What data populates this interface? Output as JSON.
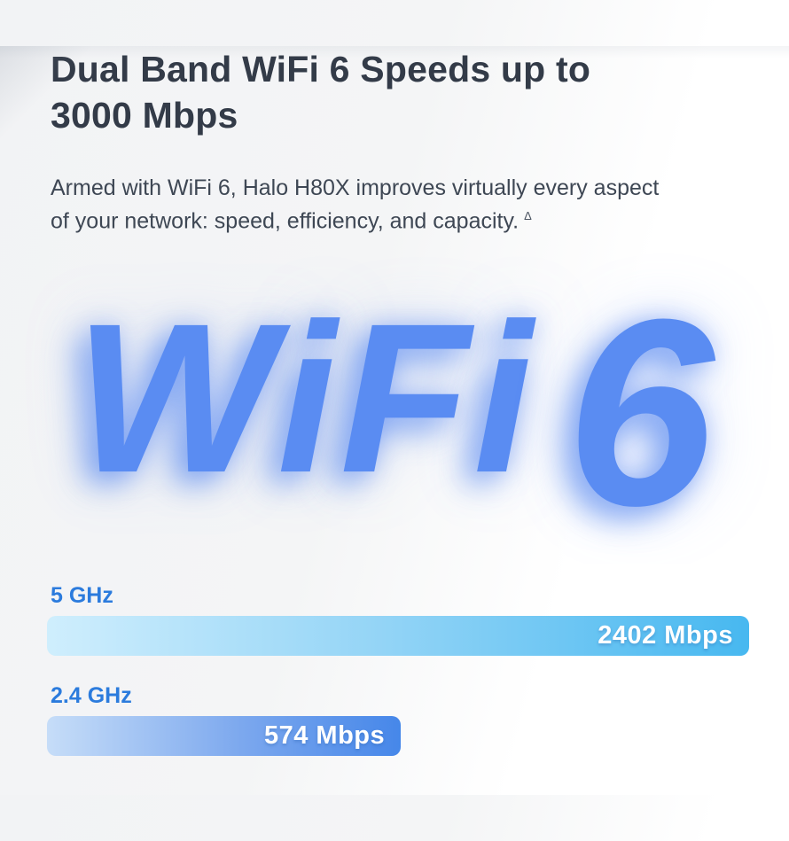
{
  "header": {
    "title_line1": "Dual Band WiFi 6 Speeds up to",
    "title_line2": "3000 Mbps",
    "description_line1": "Armed with WiFi 6, Halo H80X improves virtually every aspect",
    "description_line2": "of your network: speed, efficiency, and capacity.",
    "footnote_marker": "Δ"
  },
  "hero_graphic": {
    "word": "WiFi",
    "digit": "6"
  },
  "chart_data": {
    "type": "bar",
    "title": "Dual Band WiFi 6 Speeds up to 3000 Mbps",
    "unit": "Mbps",
    "categories": [
      "5 GHz",
      "2.4 GHz"
    ],
    "values": [
      2402,
      574
    ],
    "total_combined_speed": "3000 Mbps",
    "legend_position": "none",
    "grid": false,
    "bars": [
      {
        "band": "5 GHz",
        "value": 2402,
        "label": "2402 Mbps",
        "width_pct": 100
      },
      {
        "band": "2.4 GHz",
        "value": 574,
        "label": "574 Mbps",
        "width_pct": 50.4
      }
    ]
  },
  "colors": {
    "title_text": "#333b48",
    "body_text": "#3e4754",
    "band_label_blue": "#2b7bdd",
    "wifi_wordmark_blue": "#5a8cf2",
    "bar_5ghz_gradient": [
      "#cfeefd",
      "#47b8f0"
    ],
    "bar_24ghz_gradient": [
      "#c6ddf8",
      "#4687e9"
    ],
    "background_left": "#f2f3f5",
    "background_right": "#ffffff"
  }
}
